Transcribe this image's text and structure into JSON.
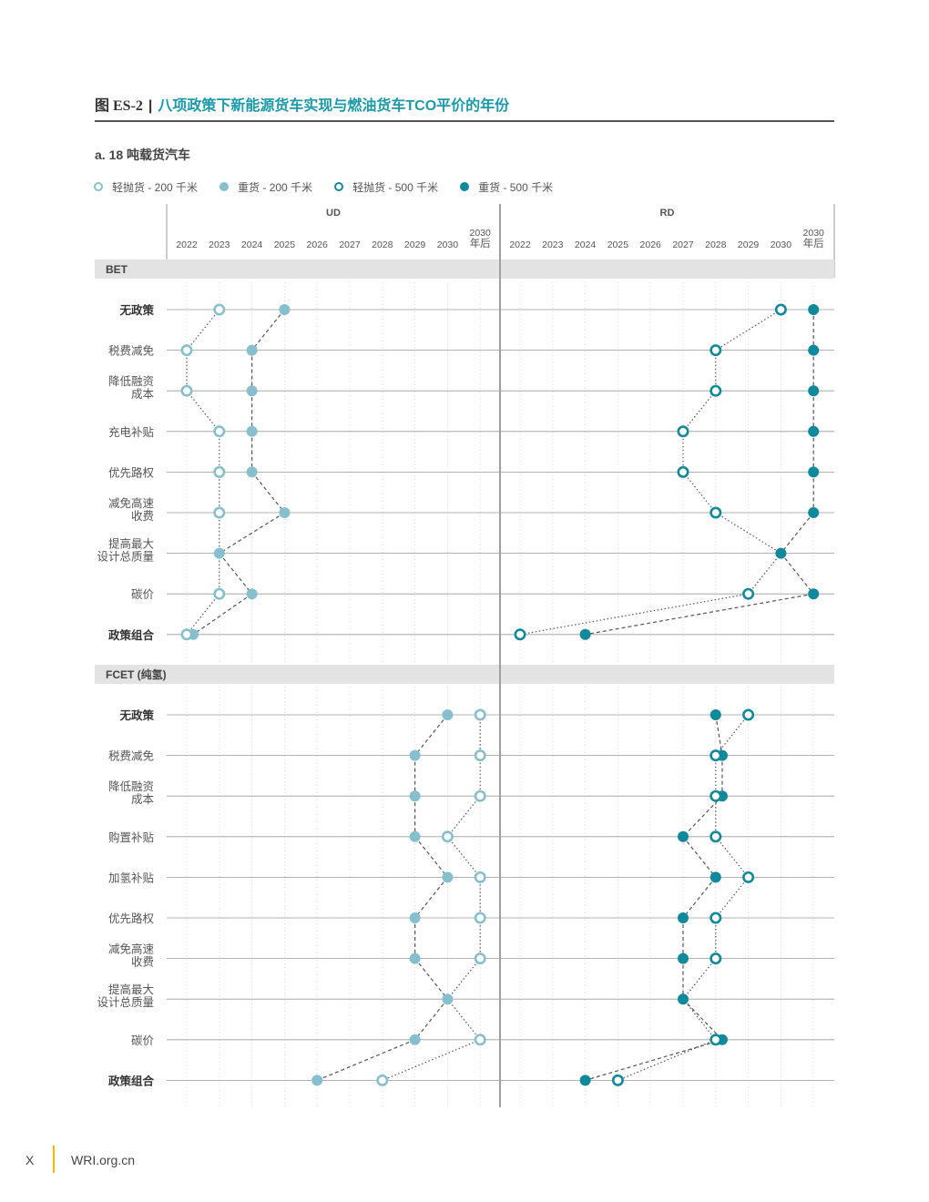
{
  "figure": {
    "number": "图 ES-2",
    "separator": "|",
    "title": "八项政策下新能源货车实现与燃油货车TCO平价的年份"
  },
  "subtitle": "a. 18 吨载货汽车",
  "legend": [
    {
      "label": "轻抛货 - 200 千米",
      "color": "#86bfce",
      "hollow": true
    },
    {
      "label": "重货 - 200 千米",
      "color": "#86bfce",
      "hollow": false
    },
    {
      "label": "轻抛货 - 500 千米",
      "color": "#0e8a9c",
      "hollow": true
    },
    {
      "label": "重货 - 500 千米",
      "color": "#0e8a9c",
      "hollow": false
    }
  ],
  "footer": {
    "page": "X",
    "url": "WRI.org.cn"
  },
  "chart_data": {
    "type": "scatter",
    "panels": [
      "UD",
      "RD"
    ],
    "x_tick_labels": [
      "2022",
      "2023",
      "2024",
      "2025",
      "2026",
      "2027",
      "2028",
      "2029",
      "2030",
      "2030\n年后"
    ],
    "x_values": [
      2022,
      2023,
      2024,
      2025,
      2026,
      2027,
      2028,
      2029,
      2030,
      2031
    ],
    "series": [
      {
        "name": "轻抛货 - 200 千米",
        "panel": "UD",
        "hollow": true,
        "color": "#86bfce"
      },
      {
        "name": "重货 - 200 千米",
        "panel": "UD",
        "hollow": false,
        "color": "#86bfce"
      },
      {
        "name": "轻抛货 - 500 千米",
        "panel": "RD",
        "hollow": true,
        "color": "#0e8a9c"
      },
      {
        "name": "重货 - 500 千米",
        "panel": "RD",
        "hollow": false,
        "color": "#0e8a9c"
      }
    ],
    "sections": [
      {
        "label": "BET",
        "rows": [
          {
            "label": "无政策",
            "bold": true,
            "ud_light": 2023,
            "ud_heavy": 2025,
            "rd_light": 2030,
            "rd_heavy": 2031
          },
          {
            "label": "税费减免",
            "bold": false,
            "ud_light": 2022,
            "ud_heavy": 2024,
            "rd_light": 2028,
            "rd_heavy": 2031
          },
          {
            "label": "降低融资\n成本",
            "bold": false,
            "ud_light": 2022,
            "ud_heavy": 2024,
            "rd_light": 2028,
            "rd_heavy": 2031
          },
          {
            "label": "充电补贴",
            "bold": false,
            "ud_light": 2023,
            "ud_heavy": 2024,
            "rd_light": 2027,
            "rd_heavy": 2031
          },
          {
            "label": "优先路权",
            "bold": false,
            "ud_light": 2023,
            "ud_heavy": 2024,
            "rd_light": 2027,
            "rd_heavy": 2031
          },
          {
            "label": "减免高速\n收费",
            "bold": false,
            "ud_light": 2023,
            "ud_heavy": 2025,
            "rd_light": 2028,
            "rd_heavy": 2031
          },
          {
            "label": "提高最大\n设计总质量",
            "bold": false,
            "ud_light": null,
            "ud_heavy": 2023,
            "rd_light": null,
            "rd_heavy": 2030
          },
          {
            "label": "碳价",
            "bold": false,
            "ud_light": 2023,
            "ud_heavy": 2024,
            "rd_light": 2029,
            "rd_heavy": 2031
          },
          {
            "label": "政策组合",
            "bold": true,
            "ud_light": 2022,
            "ud_heavy": 2022.2,
            "rd_light": 2022,
            "rd_heavy": 2024
          }
        ]
      },
      {
        "label": "FCET (纯氢)",
        "rows": [
          {
            "label": "无政策",
            "bold": true,
            "ud_light": 2031,
            "ud_heavy": 2030,
            "rd_light": 2029,
            "rd_heavy": 2028
          },
          {
            "label": "税费减免",
            "bold": false,
            "ud_light": 2031,
            "ud_heavy": 2029,
            "rd_light": 2028,
            "rd_heavy": 2028.2
          },
          {
            "label": "降低融资\n成本",
            "bold": false,
            "ud_light": 2031,
            "ud_heavy": 2029,
            "rd_light": 2028,
            "rd_heavy": 2028.2
          },
          {
            "label": "购置补贴",
            "bold": false,
            "ud_light": 2030,
            "ud_heavy": 2029,
            "rd_light": 2028,
            "rd_heavy": 2027
          },
          {
            "label": "加氢补贴",
            "bold": false,
            "ud_light": 2031,
            "ud_heavy": 2030,
            "rd_light": 2029,
            "rd_heavy": 2028
          },
          {
            "label": "优先路权",
            "bold": false,
            "ud_light": 2031,
            "ud_heavy": 2029,
            "rd_light": 2028,
            "rd_heavy": 2027
          },
          {
            "label": "减免高速\n收费",
            "bold": false,
            "ud_light": 2031,
            "ud_heavy": 2029,
            "rd_light": 2028,
            "rd_heavy": 2027
          },
          {
            "label": "提高最大\n设计总质量",
            "bold": false,
            "ud_light": null,
            "ud_heavy": 2030,
            "rd_light": null,
            "rd_heavy": 2027
          },
          {
            "label": "碳价",
            "bold": false,
            "ud_light": 2031,
            "ud_heavy": 2029,
            "rd_light": 2028,
            "rd_heavy": 2028.2
          },
          {
            "label": "政策组合",
            "bold": true,
            "ud_light": 2028,
            "ud_heavy": 2026,
            "rd_light": 2025,
            "rd_heavy": 2024
          }
        ]
      }
    ]
  }
}
